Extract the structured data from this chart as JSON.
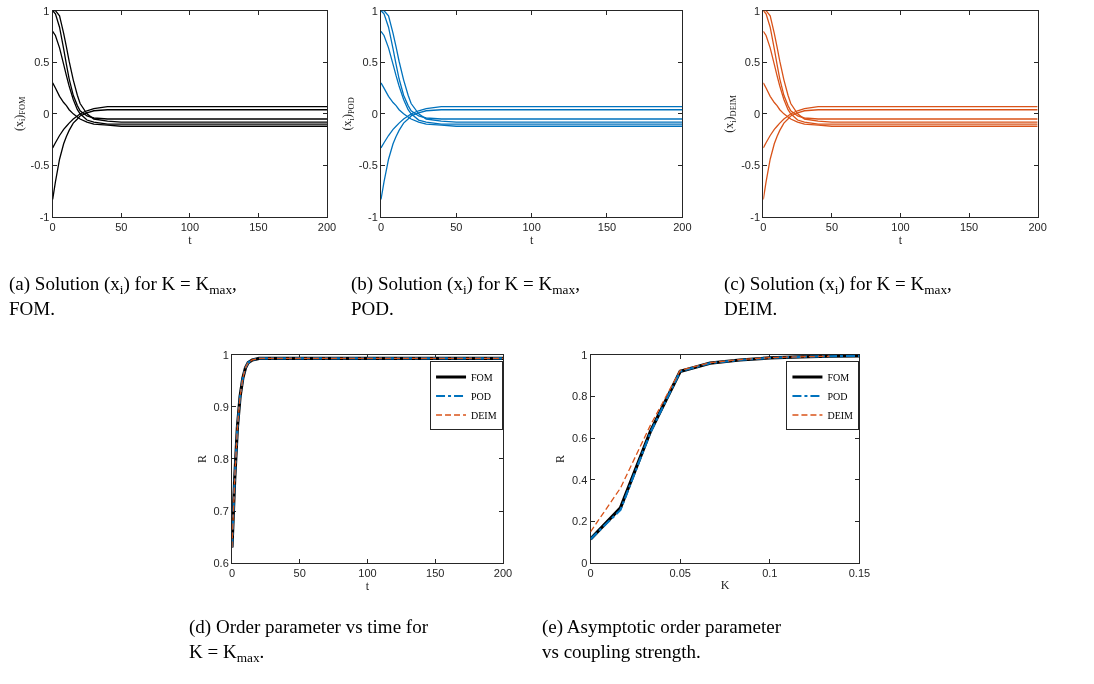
{
  "chart_data": [
    {
      "type": "line",
      "x": [
        0,
        2,
        5,
        8,
        10,
        12,
        15,
        18,
        20,
        25,
        30,
        40,
        50,
        100,
        150,
        200
      ],
      "xlabel": "t",
      "ylabel": "(x$_{i}$)$_{FOM}$",
      "xlim": [
        0,
        200
      ],
      "ylim": [
        -1,
        1
      ],
      "xticks": [
        0,
        50,
        100,
        150,
        200
      ],
      "yticks": [
        -1,
        -0.5,
        0,
        0.5,
        1
      ],
      "annotations": [
        "(a) Solution (x$_{i}$) for K = K$_{max}$, FOM."
      ],
      "series": [
        {
          "color": "#000000",
          "values": [
            1,
            0.97,
            0.84,
            0.63,
            0.48,
            0.34,
            0.18,
            0.08,
            0.03,
            -0.02,
            -0.04,
            -0.05,
            -0.05,
            -0.05,
            -0.05,
            -0.05
          ]
        },
        {
          "color": "#000000",
          "values": [
            1,
            1,
            0.95,
            0.78,
            0.65,
            0.51,
            0.33,
            0.18,
            0.1,
            0,
            -0.05,
            -0.07,
            -0.08,
            -0.08,
            -0.08,
            -0.08
          ]
        },
        {
          "color": "#000000",
          "values": [
            0.8,
            0.76,
            0.64,
            0.48,
            0.37,
            0.27,
            0.14,
            0.04,
            0,
            -0.06,
            -0.08,
            -0.1,
            -0.1,
            -0.1,
            -0.1,
            -0.1
          ]
        },
        {
          "color": "#000000",
          "values": [
            0.3,
            0.25,
            0.17,
            0.11,
            0.08,
            0.04,
            0,
            -0.03,
            -0.05,
            -0.08,
            -0.1,
            -0.11,
            -0.12,
            -0.12,
            -0.12,
            -0.12
          ]
        },
        {
          "color": "#000000",
          "values": [
            -0.33,
            -0.28,
            -0.21,
            -0.15,
            -0.12,
            -0.09,
            -0.05,
            -0.02,
            0,
            0.03,
            0.05,
            0.07,
            0.07,
            0.07,
            0.07,
            0.07
          ]
        },
        {
          "color": "#000000",
          "values": [
            -0.83,
            -0.66,
            -0.44,
            -0.29,
            -0.22,
            -0.16,
            -0.09,
            -0.05,
            -0.02,
            0.01,
            0.03,
            0.04,
            0.04,
            0.04,
            0.04,
            0.04
          ]
        }
      ]
    },
    {
      "type": "line",
      "x": [
        0,
        2,
        5,
        8,
        10,
        12,
        15,
        18,
        20,
        25,
        30,
        40,
        50,
        100,
        150,
        200
      ],
      "xlabel": "t",
      "ylabel": "(x$_{i}$)$_{POD}$",
      "xlim": [
        0,
        200
      ],
      "ylim": [
        -1,
        1
      ],
      "xticks": [
        0,
        50,
        100,
        150,
        200
      ],
      "yticks": [
        -1,
        -0.5,
        0,
        0.5,
        1
      ],
      "annotations": [
        "(b) Solution (x$_{i}$) for K = K$_{max}$, POD."
      ],
      "series": [
        {
          "color": "#0072bd",
          "values": [
            1,
            0.97,
            0.84,
            0.63,
            0.48,
            0.34,
            0.18,
            0.08,
            0.03,
            -0.02,
            -0.04,
            -0.05,
            -0.05,
            -0.05,
            -0.05,
            -0.05
          ]
        },
        {
          "color": "#0072bd",
          "values": [
            1,
            1,
            0.95,
            0.78,
            0.65,
            0.51,
            0.33,
            0.18,
            0.1,
            0,
            -0.05,
            -0.07,
            -0.08,
            -0.08,
            -0.08,
            -0.08
          ]
        },
        {
          "color": "#0072bd",
          "values": [
            0.8,
            0.76,
            0.64,
            0.48,
            0.37,
            0.27,
            0.14,
            0.04,
            0,
            -0.06,
            -0.08,
            -0.1,
            -0.1,
            -0.1,
            -0.1,
            -0.1
          ]
        },
        {
          "color": "#0072bd",
          "values": [
            0.3,
            0.25,
            0.17,
            0.11,
            0.08,
            0.04,
            0,
            -0.03,
            -0.05,
            -0.08,
            -0.1,
            -0.11,
            -0.12,
            -0.12,
            -0.12,
            -0.12
          ]
        },
        {
          "color": "#0072bd",
          "values": [
            -0.33,
            -0.28,
            -0.21,
            -0.15,
            -0.12,
            -0.09,
            -0.05,
            -0.02,
            0,
            0.03,
            0.05,
            0.07,
            0.07,
            0.07,
            0.07,
            0.07
          ]
        },
        {
          "color": "#0072bd",
          "values": [
            -0.83,
            -0.66,
            -0.44,
            -0.29,
            -0.22,
            -0.16,
            -0.09,
            -0.05,
            -0.02,
            0.01,
            0.03,
            0.04,
            0.04,
            0.04,
            0.04,
            0.04
          ]
        }
      ]
    },
    {
      "type": "line",
      "x": [
        0,
        2,
        5,
        8,
        10,
        12,
        15,
        18,
        20,
        25,
        30,
        40,
        50,
        100,
        150,
        200
      ],
      "xlabel": "t",
      "ylabel": "(x$_{i}$)$_{DEIM}$",
      "xlim": [
        0,
        200
      ],
      "ylim": [
        -1,
        1
      ],
      "xticks": [
        0,
        50,
        100,
        150,
        200
      ],
      "yticks": [
        -1,
        -0.5,
        0,
        0.5,
        1
      ],
      "annotations": [
        "(c) Solution (x$_{i}$) for K = K$_{max}$, DEIM."
      ],
      "series": [
        {
          "color": "#d95319",
          "values": [
            1,
            0.97,
            0.84,
            0.63,
            0.48,
            0.34,
            0.18,
            0.08,
            0.03,
            -0.02,
            -0.04,
            -0.05,
            -0.05,
            -0.05,
            -0.05,
            -0.05
          ]
        },
        {
          "color": "#d95319",
          "values": [
            1,
            1,
            0.95,
            0.78,
            0.65,
            0.51,
            0.33,
            0.18,
            0.1,
            0,
            -0.05,
            -0.07,
            -0.08,
            -0.08,
            -0.08,
            -0.08
          ]
        },
        {
          "color": "#d95319",
          "values": [
            0.8,
            0.76,
            0.64,
            0.48,
            0.37,
            0.27,
            0.14,
            0.04,
            0,
            -0.06,
            -0.08,
            -0.1,
            -0.1,
            -0.1,
            -0.1,
            -0.1
          ]
        },
        {
          "color": "#d95319",
          "values": [
            0.3,
            0.25,
            0.17,
            0.11,
            0.08,
            0.04,
            0,
            -0.03,
            -0.05,
            -0.08,
            -0.1,
            -0.11,
            -0.12,
            -0.12,
            -0.12,
            -0.12
          ]
        },
        {
          "color": "#d95319",
          "values": [
            -0.33,
            -0.28,
            -0.21,
            -0.15,
            -0.12,
            -0.09,
            -0.05,
            -0.02,
            0,
            0.03,
            0.05,
            0.07,
            0.07,
            0.07,
            0.07,
            0.07
          ]
        },
        {
          "color": "#d95319",
          "values": [
            -0.83,
            -0.66,
            -0.44,
            -0.29,
            -0.22,
            -0.16,
            -0.09,
            -0.05,
            -0.02,
            0.01,
            0.03,
            0.04,
            0.04,
            0.04,
            0.04,
            0.04
          ]
        }
      ]
    },
    {
      "type": "line",
      "x": [
        0,
        2,
        4,
        6,
        8,
        10,
        12,
        15,
        20,
        25,
        50,
        100,
        150,
        200
      ],
      "xlabel": "t",
      "ylabel": "R",
      "xlim": [
        0,
        200
      ],
      "ylim": [
        0.6,
        1
      ],
      "xticks": [
        0,
        50,
        100,
        150,
        200
      ],
      "yticks": [
        0.6,
        0.7,
        0.8,
        0.9,
        1
      ],
      "legend": "top right",
      "annotations": [
        "(d) Order parameter vs time for K = K$_{max}$."
      ],
      "series": [
        {
          "name": "FOM",
          "color": "#000000",
          "line_style": "solid",
          "values": [
            0.63,
            0.76,
            0.86,
            0.92,
            0.955,
            0.975,
            0.985,
            0.99,
            0.993,
            0.993,
            0.993,
            0.993,
            0.993,
            0.993
          ]
        },
        {
          "name": "POD",
          "color": "#0072bd",
          "line_style": "dashdot",
          "values": [
            0.63,
            0.76,
            0.86,
            0.92,
            0.955,
            0.975,
            0.985,
            0.99,
            0.993,
            0.993,
            0.993,
            0.993,
            0.993,
            0.993
          ]
        },
        {
          "name": "DEIM",
          "color": "#d95319",
          "line_style": "dashed",
          "values": [
            0.63,
            0.76,
            0.86,
            0.92,
            0.955,
            0.975,
            0.985,
            0.99,
            0.993,
            0.993,
            0.993,
            0.993,
            0.993,
            0.993
          ]
        }
      ]
    },
    {
      "type": "line",
      "x": [
        0,
        0.0167,
        0.0333,
        0.05,
        0.0667,
        0.0833,
        0.1,
        0.1167,
        0.1333,
        0.15
      ],
      "xlabel": "K",
      "ylabel": "R",
      "xlim": [
        0,
        0.15
      ],
      "ylim": [
        0,
        1
      ],
      "xticks": [
        0,
        0.05,
        0.1,
        0.15
      ],
      "yticks": [
        0,
        0.2,
        0.4,
        0.6,
        0.8,
        1
      ],
      "legend": "top right",
      "annotations": [
        "(e) Asymptotic order parameter vs coupling strength."
      ],
      "series": [
        {
          "name": "FOM",
          "color": "#000000",
          "line_style": "solid",
          "values": [
            0.115,
            0.265,
            0.63,
            0.92,
            0.96,
            0.975,
            0.985,
            0.99,
            0.993,
            0.995
          ]
        },
        {
          "name": "POD",
          "color": "#0072bd",
          "line_style": "dashdot",
          "values": [
            0.115,
            0.255,
            0.625,
            0.92,
            0.96,
            0.975,
            0.985,
            0.99,
            0.993,
            0.995
          ]
        },
        {
          "name": "DEIM",
          "color": "#d95319",
          "line_style": "dashed",
          "values": [
            0.15,
            0.36,
            0.66,
            0.925,
            0.962,
            0.977,
            0.986,
            0.99,
            0.993,
            null
          ]
        }
      ]
    }
  ]
}
